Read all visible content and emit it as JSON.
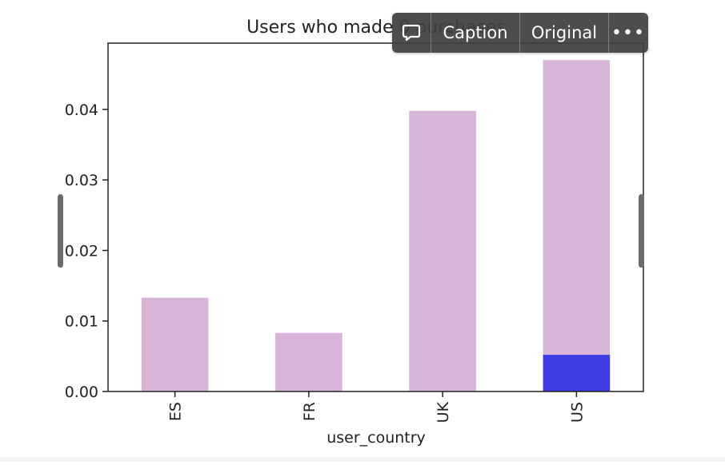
{
  "chart_data": {
    "type": "bar",
    "title": "Users who made 0 purchases",
    "xlabel": "user_country",
    "ylabel": "",
    "categories": [
      "ES",
      "FR",
      "UK",
      "US"
    ],
    "series": [
      {
        "values": [
          0.0133,
          0.0083,
          0.0398,
          0.047
        ]
      },
      {
        "values": [
          0,
          0,
          0,
          0.0052
        ]
      }
    ],
    "ylim": [
      0,
      0.0494
    ],
    "yticks": [
      0.0,
      0.01,
      0.02,
      0.03,
      0.04
    ],
    "ytick_labels": [
      "0.00",
      "0.01",
      "0.02",
      "0.03",
      "0.04"
    ],
    "bar_colors": [
      "#d8b4d8",
      "#3f3ce6"
    ],
    "grid": false,
    "stacked": false
  },
  "toolbar": {
    "comment_icon": "speech-bubble-icon",
    "caption_label": "Caption",
    "original_label": "Original",
    "more_label": "•••"
  }
}
